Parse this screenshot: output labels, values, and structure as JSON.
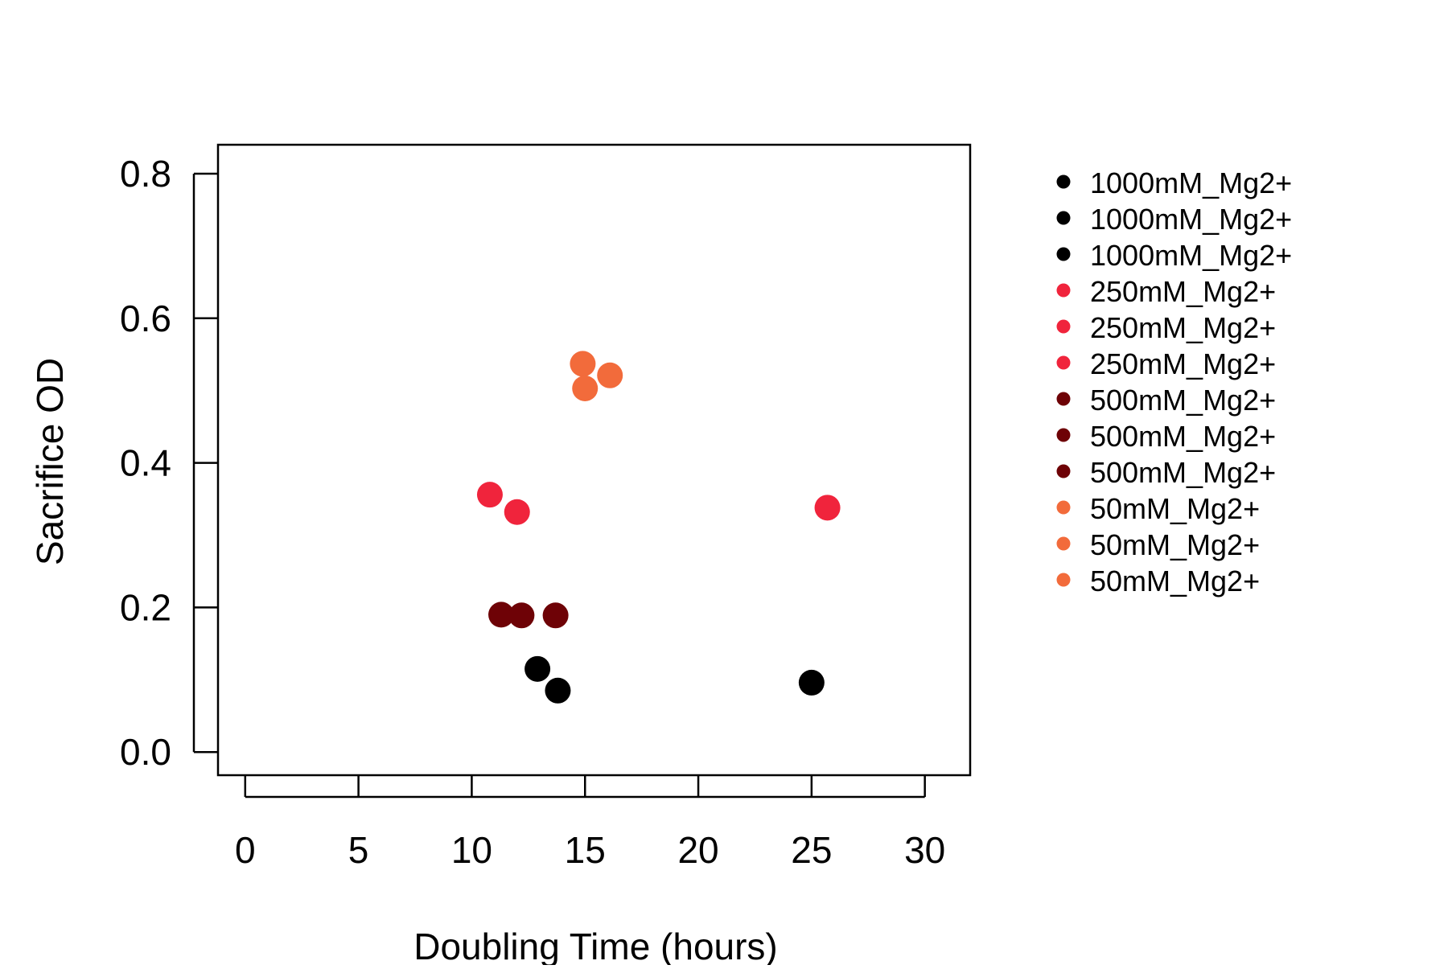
{
  "chart_data": {
    "type": "scatter",
    "title": "",
    "xlabel": "Doubling Time (hours)",
    "ylabel": "Sacrifice OD",
    "xlim": [
      -1.2,
      32
    ],
    "ylim": [
      -0.032,
      0.84
    ],
    "x_ticks": [
      0,
      5,
      10,
      15,
      20,
      25,
      30
    ],
    "y_ticks": [
      0.0,
      0.2,
      0.4,
      0.6,
      0.8
    ],
    "x_tick_labels": [
      "0",
      "5",
      "10",
      "15",
      "20",
      "25",
      "30"
    ],
    "y_tick_labels": [
      "0.0",
      "0.2",
      "0.4",
      "0.6",
      "0.8"
    ],
    "grid": false,
    "legend_position": "right",
    "series": [
      {
        "name": "1000mM_Mg2+",
        "color": "#000000",
        "points": [
          [
            12.9,
            0.115
          ]
        ]
      },
      {
        "name": "1000mM_Mg2+",
        "color": "#000000",
        "points": [
          [
            13.8,
            0.085
          ]
        ]
      },
      {
        "name": "1000mM_Mg2+",
        "color": "#000000",
        "points": [
          [
            25.0,
            0.096
          ]
        ]
      },
      {
        "name": "250mM_Mg2+",
        "color": "#f0243c",
        "points": [
          [
            10.8,
            0.356
          ]
        ]
      },
      {
        "name": "250mM_Mg2+",
        "color": "#f0243c",
        "points": [
          [
            12.0,
            0.332
          ]
        ]
      },
      {
        "name": "250mM_Mg2+",
        "color": "#f0243c",
        "points": [
          [
            25.7,
            0.338
          ]
        ]
      },
      {
        "name": "500mM_Mg2+",
        "color": "#6e0206",
        "points": [
          [
            11.3,
            0.19
          ]
        ]
      },
      {
        "name": "500mM_Mg2+",
        "color": "#6e0206",
        "points": [
          [
            12.2,
            0.189
          ]
        ]
      },
      {
        "name": "500mM_Mg2+",
        "color": "#6e0206",
        "points": [
          [
            13.7,
            0.189
          ]
        ]
      },
      {
        "name": "50mM_Mg2+",
        "color": "#f26b3b",
        "points": [
          [
            14.9,
            0.537
          ]
        ]
      },
      {
        "name": "50mM_Mg2+",
        "color": "#f26b3b",
        "points": [
          [
            16.1,
            0.521
          ]
        ]
      },
      {
        "name": "50mM_Mg2+",
        "color": "#f26b3b",
        "points": [
          [
            15.0,
            0.503
          ]
        ]
      }
    ]
  }
}
